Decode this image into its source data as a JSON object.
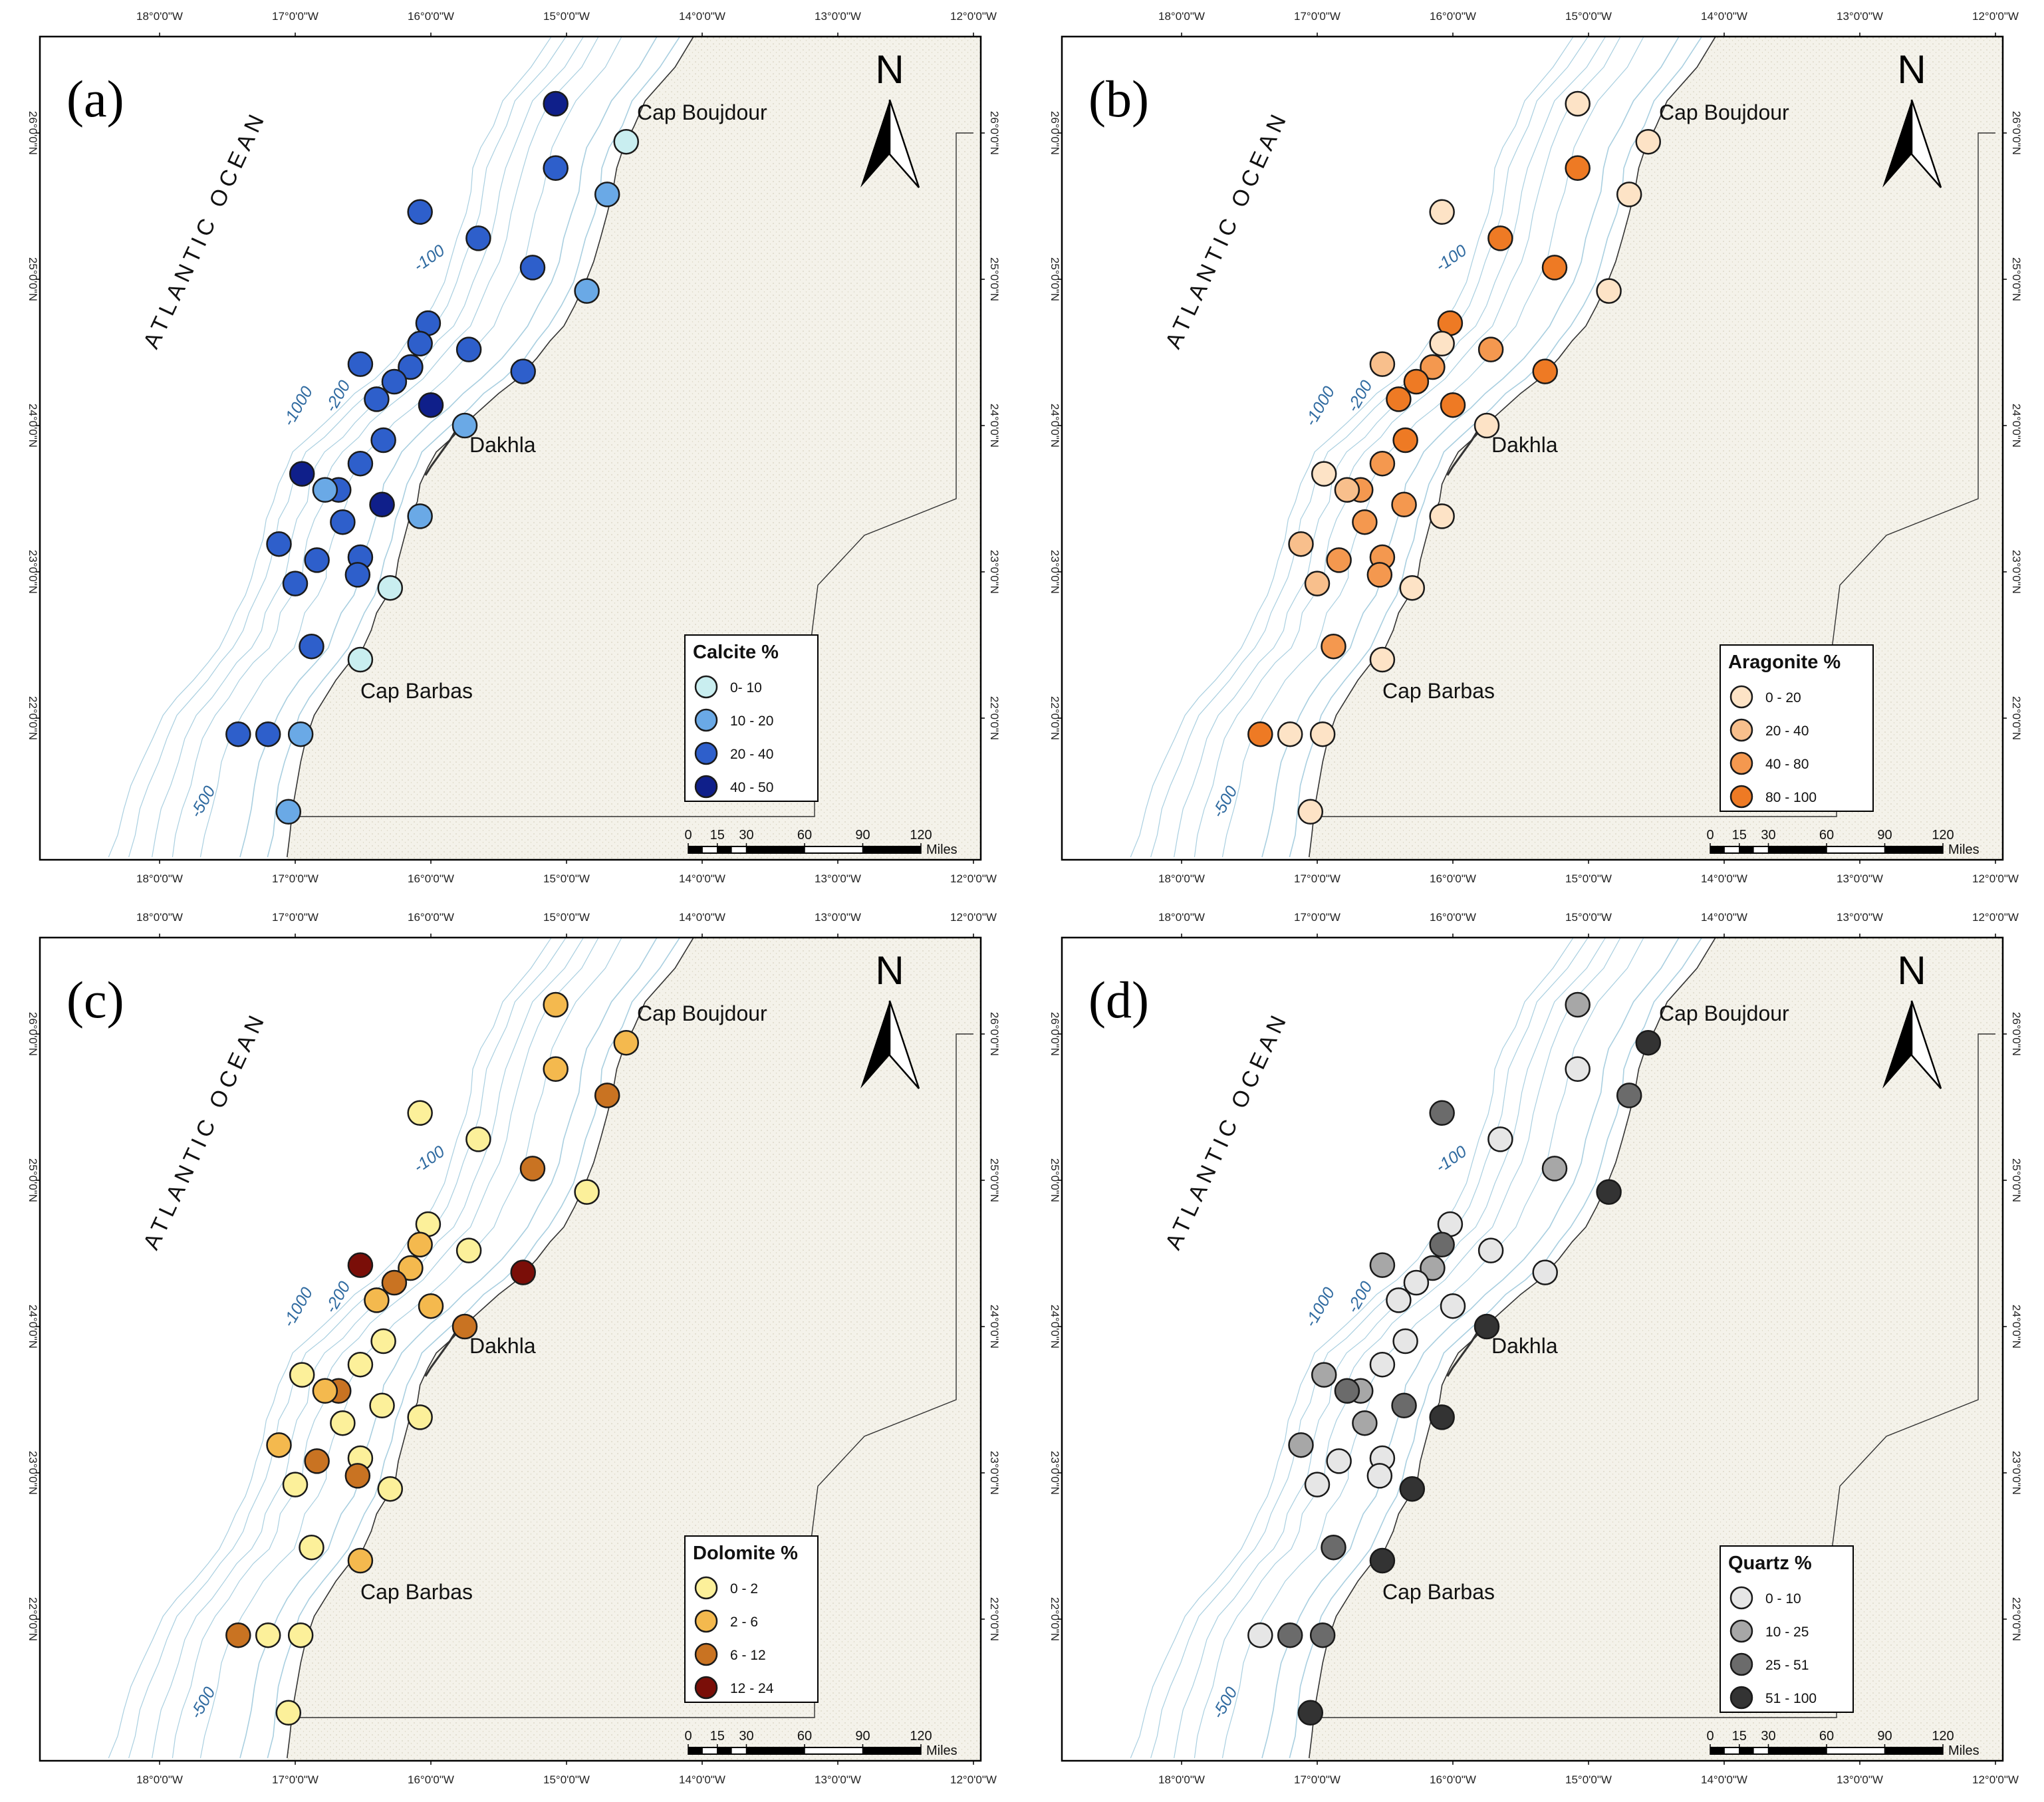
{
  "figure": {
    "longitude_ticks": [
      "18°0'0\"W",
      "17°0'0\"W",
      "16°0'0\"W",
      "15°0'0\"W",
      "14°0'0\"W",
      "13°0'0\"W",
      "12°0'0\"W"
    ],
    "latitude_ticks": [
      "26°0'0\"N",
      "25°0'0\"N",
      "24°0'0\"N",
      "23°0'0\"N",
      "22°0'0\"N"
    ],
    "labels": {
      "ocean": "ATLANTIC OCEAN",
      "north": "N",
      "cap_boujdour": "Cap Boujdour",
      "dakhla": "Dakhla",
      "cap_barbas": "Cap Barbas"
    },
    "depth_labels": [
      "-100",
      "-200",
      "-1000",
      "-500"
    ],
    "scale_bar": {
      "ticks": [
        "0",
        "15",
        "30",
        "60",
        "90",
        "120"
      ],
      "unit": "Miles"
    },
    "colors": {
      "land": "#f4f2ea",
      "coast": "#333333",
      "contour": "#a9cfe0",
      "frame": "#000000"
    }
  },
  "stations": [
    {
      "lon": -15.08,
      "lat": 26.2
    },
    {
      "lon": -14.56,
      "lat": 25.94
    },
    {
      "lon": -15.08,
      "lat": 25.76
    },
    {
      "lon": -14.7,
      "lat": 25.58
    },
    {
      "lon": -16.08,
      "lat": 25.46
    },
    {
      "lon": -15.65,
      "lat": 25.28
    },
    {
      "lon": -15.25,
      "lat": 25.08
    },
    {
      "lon": -14.85,
      "lat": 24.92
    },
    {
      "lon": -16.02,
      "lat": 24.7
    },
    {
      "lon": -16.08,
      "lat": 24.56
    },
    {
      "lon": -15.72,
      "lat": 24.52
    },
    {
      "lon": -16.52,
      "lat": 24.42
    },
    {
      "lon": -16.15,
      "lat": 24.4
    },
    {
      "lon": -15.32,
      "lat": 24.37
    },
    {
      "lon": -16.27,
      "lat": 24.3
    },
    {
      "lon": -16.4,
      "lat": 24.18
    },
    {
      "lon": -16.0,
      "lat": 24.14
    },
    {
      "lon": -15.75,
      "lat": 24.0
    },
    {
      "lon": -16.35,
      "lat": 23.9
    },
    {
      "lon": -16.52,
      "lat": 23.74
    },
    {
      "lon": -16.95,
      "lat": 23.67
    },
    {
      "lon": -16.68,
      "lat": 23.56
    },
    {
      "lon": -16.78,
      "lat": 23.56
    },
    {
      "lon": -16.36,
      "lat": 23.46
    },
    {
      "lon": -16.08,
      "lat": 23.38
    },
    {
      "lon": -16.65,
      "lat": 23.34
    },
    {
      "lon": -17.12,
      "lat": 23.19
    },
    {
      "lon": -16.52,
      "lat": 23.1
    },
    {
      "lon": -16.84,
      "lat": 23.08
    },
    {
      "lon": -16.54,
      "lat": 22.98
    },
    {
      "lon": -17.0,
      "lat": 22.92
    },
    {
      "lon": -16.3,
      "lat": 22.89
    },
    {
      "lon": -16.88,
      "lat": 22.49
    },
    {
      "lon": -16.52,
      "lat": 22.4
    },
    {
      "lon": -17.42,
      "lat": 21.89
    },
    {
      "lon": -17.2,
      "lat": 21.89
    },
    {
      "lon": -16.96,
      "lat": 21.89
    },
    {
      "lon": -17.05,
      "lat": 21.36
    }
  ],
  "panels": [
    {
      "letter": "(a)",
      "legend": {
        "title": "Calcite %",
        "classes": [
          {
            "label": "0- 10",
            "color": "#c9eef0"
          },
          {
            "label": "10 - 20",
            "color": "#6aa9e6"
          },
          {
            "label": "20 - 40",
            "color": "#2e5fcb"
          },
          {
            "label": "40 - 50",
            "color": "#0f1f8a"
          }
        ]
      },
      "station_classes": [
        3,
        0,
        2,
        1,
        2,
        2,
        2,
        1,
        2,
        2,
        2,
        2,
        2,
        2,
        2,
        2,
        3,
        1,
        2,
        2,
        3,
        2,
        1,
        3,
        1,
        2,
        2,
        2,
        2,
        2,
        2,
        0,
        2,
        0,
        2,
        2,
        1,
        1
      ]
    },
    {
      "letter": "(b)",
      "legend": {
        "title": "Aragonite %",
        "classes": [
          {
            "label": "0 - 20",
            "color": "#fde3c6"
          },
          {
            "label": "20 - 40",
            "color": "#f8bf8c"
          },
          {
            "label": "40 - 80",
            "color": "#f4984f"
          },
          {
            "label": "80 - 100",
            "color": "#ee7a24"
          }
        ]
      },
      "station_classes": [
        0,
        0,
        3,
        0,
        0,
        3,
        3,
        0,
        3,
        0,
        2,
        1,
        2,
        3,
        3,
        3,
        3,
        0,
        3,
        2,
        0,
        2,
        1,
        2,
        0,
        2,
        1,
        2,
        2,
        2,
        1,
        0,
        2,
        0,
        3,
        0,
        0,
        0
      ]
    },
    {
      "letter": "(c)",
      "legend": {
        "title": "Dolomite %",
        "classes": [
          {
            "label": "0 - 2",
            "color": "#fcf09a"
          },
          {
            "label": "2 - 6",
            "color": "#f4b94e"
          },
          {
            "label": "6 - 12",
            "color": "#c97322"
          },
          {
            "label": "12 - 24",
            "color": "#7a0e08"
          }
        ]
      },
      "station_classes": [
        1,
        1,
        1,
        2,
        0,
        0,
        2,
        0,
        0,
        1,
        0,
        3,
        1,
        3,
        2,
        1,
        1,
        2,
        0,
        0,
        0,
        2,
        1,
        0,
        0,
        0,
        1,
        0,
        2,
        2,
        0,
        0,
        0,
        1,
        2,
        0,
        0,
        0
      ]
    },
    {
      "letter": "(d)",
      "legend": {
        "title": "Quartz %",
        "classes": [
          {
            "label": "0 - 10",
            "color": "#e6e6e6"
          },
          {
            "label": "10 - 25",
            "color": "#a7a7a7"
          },
          {
            "label": "25 - 51",
            "color": "#6b6b6b"
          },
          {
            "label": "51 - 100",
            "color": "#333333"
          }
        ]
      },
      "station_classes": [
        1,
        3,
        0,
        2,
        2,
        0,
        1,
        3,
        0,
        2,
        0,
        1,
        1,
        0,
        0,
        0,
        0,
        3,
        0,
        0,
        1,
        1,
        2,
        2,
        3,
        1,
        1,
        0,
        0,
        0,
        0,
        3,
        2,
        3,
        0,
        2,
        2,
        3
      ]
    }
  ]
}
